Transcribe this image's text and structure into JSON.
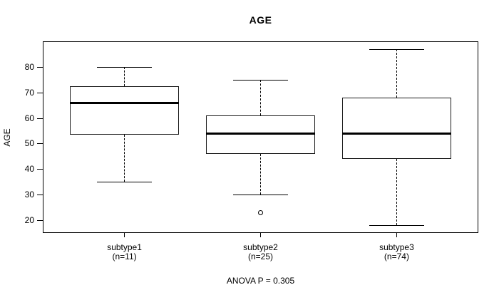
{
  "figure": {
    "background": "#ffffff",
    "line_color": "#000000",
    "text_color": "#000000"
  },
  "chart_data": {
    "type": "boxplot",
    "title": "AGE",
    "ylabel": "AGE",
    "xlabel": "",
    "annotation": "ANOVA P = 0.305",
    "ylim": [
      15,
      90
    ],
    "xlim": [
      0.4,
      3.6
    ],
    "y_ticks": [
      20,
      30,
      40,
      50,
      60,
      70,
      80
    ],
    "box_width": 0.8,
    "grid": false,
    "legend": null,
    "groups": [
      {
        "label": "subtype1",
        "sublabel": "(n=11)",
        "n": 11,
        "position": 1,
        "whisker_low": 35,
        "q1": 53.5,
        "median": 66,
        "q3": 72.5,
        "whisker_high": 80,
        "outliers": []
      },
      {
        "label": "subtype2",
        "sublabel": "(n=25)",
        "n": 25,
        "position": 2,
        "whisker_low": 30,
        "q1": 46,
        "median": 54,
        "q3": 61,
        "whisker_high": 75,
        "outliers": [
          23
        ]
      },
      {
        "label": "subtype3",
        "sublabel": "(n=74)",
        "n": 74,
        "position": 3,
        "whisker_low": 18,
        "q1": 44,
        "median": 54,
        "q3": 68,
        "whisker_high": 87,
        "outliers": []
      }
    ]
  }
}
